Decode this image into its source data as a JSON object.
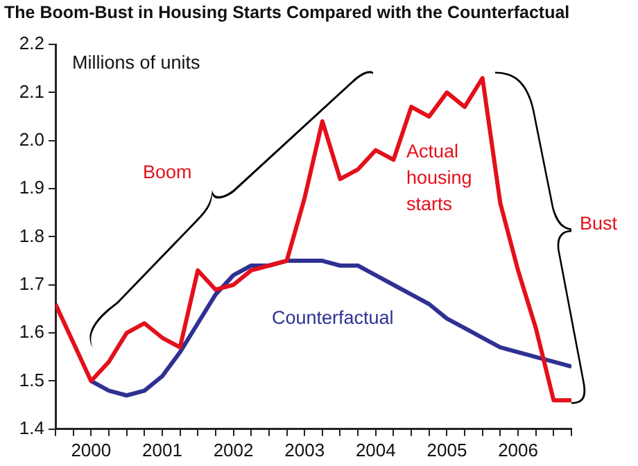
{
  "chart_data": {
    "type": "line",
    "title": "The Boom-Bust in Housing Starts Compared with the Counterfactual",
    "x": [
      2000,
      2000.25,
      2000.5,
      2000.75,
      2001,
      2001.25,
      2001.5,
      2001.75,
      2002,
      2002.25,
      2002.5,
      2002.75,
      2003,
      2003.25,
      2003.5,
      2003.75,
      2004,
      2004.25,
      2004.5,
      2004.75,
      2005,
      2005.25,
      2005.5,
      2005.75,
      2006,
      2006.25,
      2006.5,
      2006.75,
      2007,
      2007.25
    ],
    "series": [
      {
        "name": "Actual housing starts",
        "color": "#e3101b",
        "values": [
          1.66,
          1.58,
          1.5,
          1.54,
          1.6,
          1.62,
          1.59,
          1.57,
          1.73,
          1.69,
          1.7,
          1.73,
          1.74,
          1.75,
          1.88,
          2.04,
          1.92,
          1.94,
          1.98,
          1.96,
          2.07,
          2.05,
          2.1,
          2.07,
          2.13,
          1.87,
          1.73,
          1.61,
          1.46,
          1.46
        ]
      },
      {
        "name": "Counterfactual",
        "color": "#2e3192",
        "values": [
          null,
          null,
          1.5,
          1.48,
          1.47,
          1.48,
          1.51,
          1.56,
          1.62,
          1.68,
          1.72,
          1.74,
          1.74,
          1.75,
          1.75,
          1.75,
          1.74,
          1.74,
          1.72,
          1.7,
          1.68,
          1.66,
          1.63,
          1.61,
          1.59,
          1.57,
          1.56,
          1.55,
          1.54,
          1.53
        ]
      }
    ],
    "xlim": [
      2000,
      2007.25
    ],
    "xticks": [
      {
        "value": 2000,
        "label": null
      },
      {
        "value": 2000.25,
        "label": null
      },
      {
        "value": 2000.5,
        "label": "2000"
      },
      {
        "value": 2000.75,
        "label": null
      },
      {
        "value": 2001,
        "label": null
      },
      {
        "value": 2001.25,
        "label": null
      },
      {
        "value": 2001.5,
        "label": "2001"
      },
      {
        "value": 2001.75,
        "label": null
      },
      {
        "value": 2002,
        "label": null
      },
      {
        "value": 2002.25,
        "label": null
      },
      {
        "value": 2002.5,
        "label": "2002"
      },
      {
        "value": 2002.75,
        "label": null
      },
      {
        "value": 2003,
        "label": null
      },
      {
        "value": 2003.25,
        "label": null
      },
      {
        "value": 2003.5,
        "label": "2003"
      },
      {
        "value": 2003.75,
        "label": null
      },
      {
        "value": 2004,
        "label": null
      },
      {
        "value": 2004.25,
        "label": null
      },
      {
        "value": 2004.5,
        "label": "2004"
      },
      {
        "value": 2004.75,
        "label": null
      },
      {
        "value": 2005,
        "label": null
      },
      {
        "value": 2005.25,
        "label": null
      },
      {
        "value": 2005.5,
        "label": "2005"
      },
      {
        "value": 2005.75,
        "label": null
      },
      {
        "value": 2006,
        "label": null
      },
      {
        "value": 2006.25,
        "label": null
      },
      {
        "value": 2006.5,
        "label": "2006"
      },
      {
        "value": 2006.75,
        "label": null
      },
      {
        "value": 2007,
        "label": null
      },
      {
        "value": 2007.25,
        "label": null
      }
    ],
    "ylim": [
      1.4,
      2.2
    ],
    "yticks": [
      {
        "value": 1.4,
        "label": "1.4"
      },
      {
        "value": 1.5,
        "label": "1.5"
      },
      {
        "value": 1.6,
        "label": "1.6"
      },
      {
        "value": 1.7,
        "label": "1.7"
      },
      {
        "value": 1.8,
        "label": "1.8"
      },
      {
        "value": 1.9,
        "label": "1.9"
      },
      {
        "value": 2.0,
        "label": "2.0"
      },
      {
        "value": 2.1,
        "label": "2.1"
      },
      {
        "value": 2.2,
        "label": "2.2"
      }
    ],
    "annotations": [
      "Millions of units",
      "Boom",
      "Bust"
    ],
    "grid": false,
    "legend": false,
    "marker": "none",
    "line_style": "solid"
  }
}
